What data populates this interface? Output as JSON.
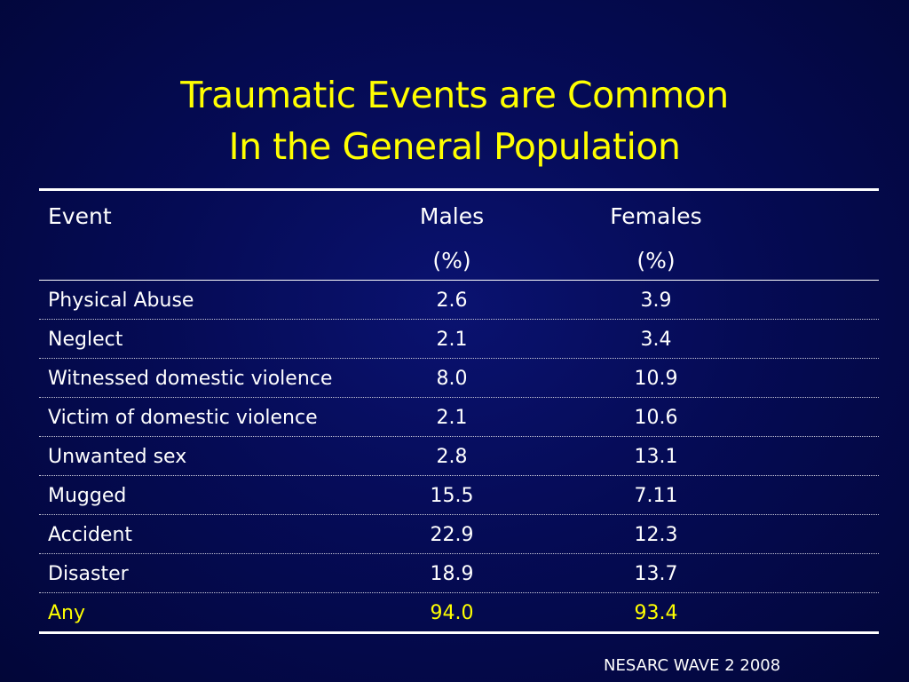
{
  "slide": {
    "title_line1": "Traumatic Events are Common",
    "title_line2": "In the General Population",
    "source": "NESARC WAVE 2 2008"
  },
  "table": {
    "headers": {
      "event": "Event",
      "males_line1": "Males",
      "males_line2": "(%)",
      "females_line1": "Females",
      "females_line2": "(%)"
    },
    "rows": [
      {
        "event": "Physical Abuse",
        "males": "2.6",
        "females": "3.9"
      },
      {
        "event": "Neglect",
        "males": "2.1",
        "females": "3.4"
      },
      {
        "event": "Witnessed domestic violence",
        "males": "8.0",
        "females": "10.9"
      },
      {
        "event": "Victim of domestic violence",
        "males": "2.1",
        "females": "10.6"
      },
      {
        "event": "Unwanted sex",
        "males": "2.8",
        "females": "13.1"
      },
      {
        "event": "Mugged",
        "males": "15.5",
        "females": "7.11"
      },
      {
        "event": "Accident",
        "males": "22.9",
        "females": "12.3"
      },
      {
        "event": "Disaster",
        "males": "18.9",
        "females": "13.7"
      },
      {
        "event": "Any",
        "males": "94.0",
        "females": "93.4"
      }
    ]
  },
  "colors": {
    "background": "#050b55",
    "title": "#ffff00",
    "text": "#ffffff",
    "highlight_row": "#ffff00"
  }
}
